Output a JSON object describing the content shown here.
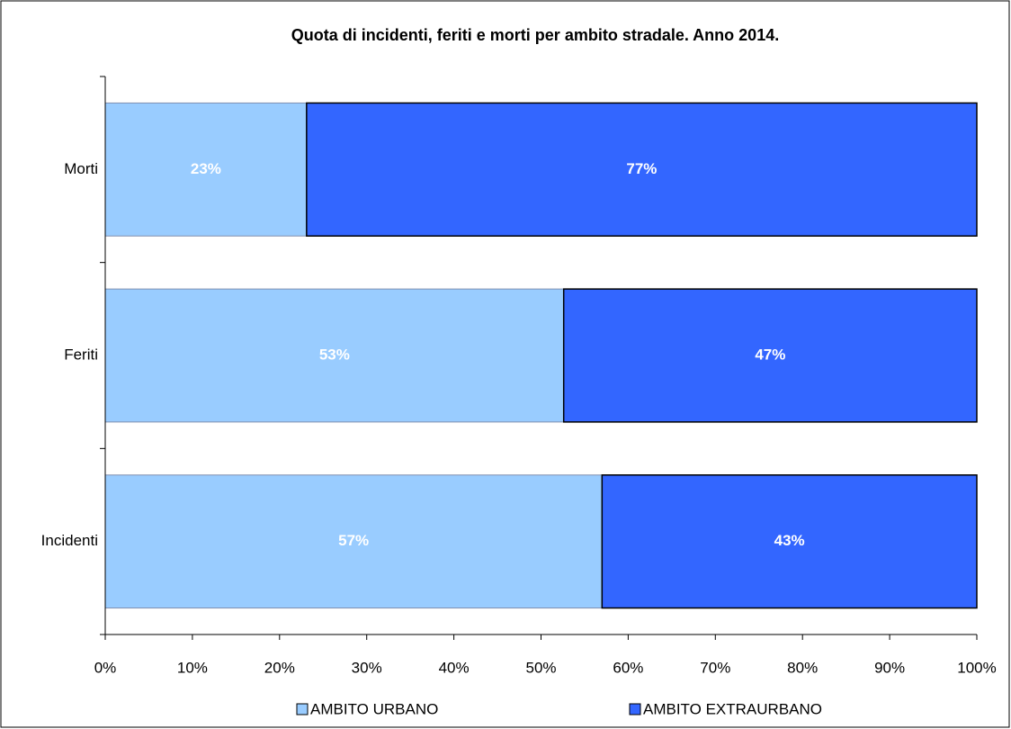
{
  "chart_data": {
    "type": "stacked-barh",
    "title": "Quota di incidenti, feriti e morti per ambito stradale. Anno 2014.",
    "categories": [
      "Incidenti",
      "Feriti",
      "Morti"
    ],
    "series": [
      {
        "name": "AMBITO URBANO",
        "color": "#99ccff",
        "values": [
          57,
          52.6,
          23.1
        ],
        "value_labels": [
          "57%",
          "53%",
          "23%"
        ]
      },
      {
        "name": "AMBITO EXTRAURBANO",
        "color": "#3366ff",
        "values": [
          43,
          47.4,
          76.9
        ],
        "value_labels": [
          "43%",
          "47%",
          "77%"
        ]
      }
    ],
    "xlim": [
      0,
      100
    ],
    "xticks": [
      {
        "value": 0,
        "label": "0%"
      },
      {
        "value": 10,
        "label": "10%"
      },
      {
        "value": 20,
        "label": "20%"
      },
      {
        "value": 30,
        "label": "30%"
      },
      {
        "value": 40,
        "label": "40%"
      },
      {
        "value": 50,
        "label": "50%"
      },
      {
        "value": 60,
        "label": "60%"
      },
      {
        "value": 70,
        "label": "70%"
      },
      {
        "value": 80,
        "label": "80%"
      },
      {
        "value": 90,
        "label": "90%"
      },
      {
        "value": 100,
        "label": "100%"
      }
    ],
    "grid": false,
    "legend": "bottom"
  }
}
